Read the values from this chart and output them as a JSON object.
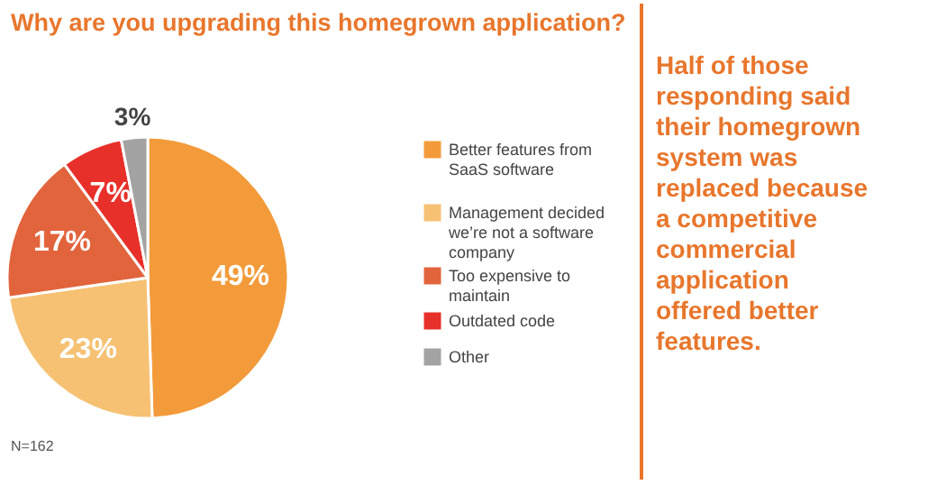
{
  "chart_data": {
    "type": "pie",
    "title": "Why are you upgrading this homegrown application?",
    "categories": [
      "Better features from SaaS software",
      "Management decided we’re not a software company",
      "Too expensive to maintain",
      "Outdated code",
      "Other"
    ],
    "values": [
      49,
      23,
      17,
      7,
      3
    ],
    "colors": [
      "#f39b3a",
      "#f6c173",
      "#e2643c",
      "#e8302a",
      "#a3a3a3"
    ],
    "value_labels": [
      "49%",
      "23%",
      "17%",
      "7%",
      "3%"
    ],
    "legend": "right",
    "annotations": [
      "N=162",
      "Half of those responding said their homegrown system was replaced because a competitive commercial application offered better features."
    ]
  }
}
